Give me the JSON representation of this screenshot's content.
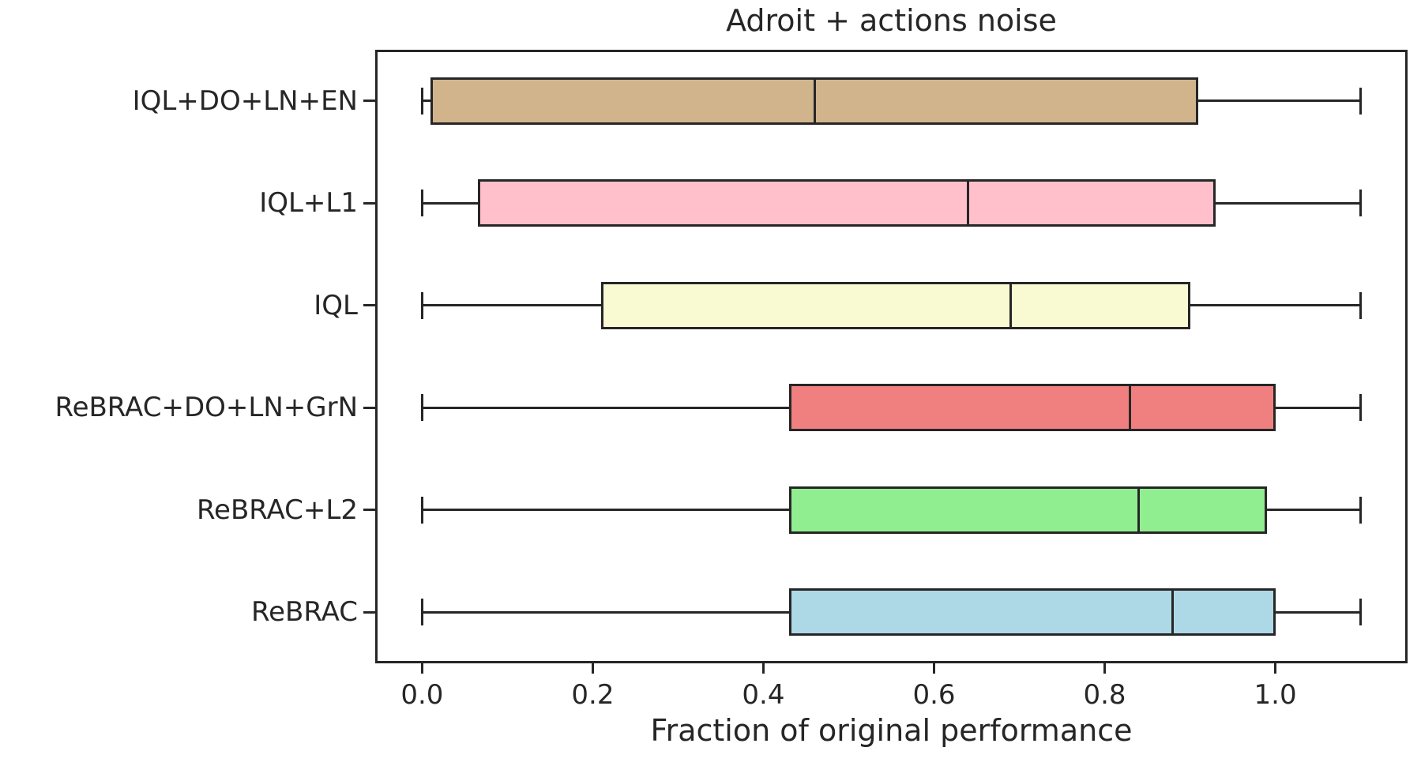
{
  "chart_data": {
    "type": "boxplot",
    "orientation": "horizontal",
    "title": "Adroit + actions noise",
    "xlabel": "Fraction of original performance",
    "ylabel": "",
    "xlim": [
      -0.055,
      1.155
    ],
    "grid": false,
    "xticks": {
      "values": [
        0.0,
        0.2,
        0.4,
        0.6,
        0.8,
        1.0
      ],
      "labels": [
        "0.0",
        "0.2",
        "0.4",
        "0.6",
        "0.8",
        "1.0"
      ]
    },
    "categories": [
      "IQL+DO+LN+EN",
      "IQL+L1",
      "IQL",
      "ReBRAC+DO+LN+GrN",
      "ReBRAC+L2",
      "ReBRAC"
    ],
    "series": [
      {
        "label": "IQL+DO+LN+EN",
        "whisker_low": 0.0,
        "q1": 0.01,
        "median": 0.46,
        "q3": 0.91,
        "whisker_high": 1.1,
        "color": "#D2B48C"
      },
      {
        "label": "IQL+L1",
        "whisker_low": 0.0,
        "q1": 0.065,
        "median": 0.64,
        "q3": 0.93,
        "whisker_high": 1.1,
        "color": "#FFC0CB"
      },
      {
        "label": "IQL",
        "whisker_low": 0.0,
        "q1": 0.21,
        "median": 0.69,
        "q3": 0.9,
        "whisker_high": 1.1,
        "color": "#FAFAD2"
      },
      {
        "label": "ReBRAC+DO+LN+GrN",
        "whisker_low": 0.0,
        "q1": 0.43,
        "median": 0.83,
        "q3": 1.0,
        "whisker_high": 1.1,
        "color": "#F08080"
      },
      {
        "label": "ReBRAC+L2",
        "whisker_low": 0.0,
        "q1": 0.43,
        "median": 0.84,
        "q3": 0.99,
        "whisker_high": 1.1,
        "color": "#90EE90"
      },
      {
        "label": "ReBRAC",
        "whisker_low": 0.0,
        "q1": 0.43,
        "median": 0.88,
        "q3": 1.0,
        "whisker_high": 1.1,
        "color": "#ADD8E6"
      }
    ],
    "styles": {
      "line_color": "#262626",
      "text_color": "#262626",
      "background": "#ffffff"
    }
  }
}
